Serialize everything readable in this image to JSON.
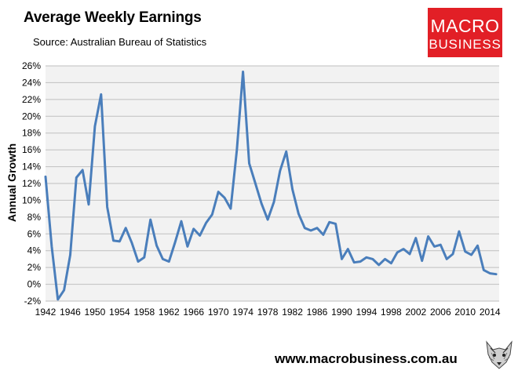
{
  "header": {
    "title": "Average Weekly Earnings",
    "subtitle": "Source: Australian Bureau of Statistics"
  },
  "logo": {
    "line1": "MACRO",
    "line2": "BUSINESS",
    "color": "#e21f26"
  },
  "footer": {
    "website": "www.macrobusiness.com.au"
  },
  "chart_data": {
    "type": "line",
    "title": "Average Weekly Earnings",
    "xlabel": "",
    "ylabel": "Annual Growth",
    "ylim": [
      -2,
      26
    ],
    "xlim": [
      1942,
      2015.5
    ],
    "grid": true,
    "line_color": "#4a7ebb",
    "plot_background": "#f2f2f2",
    "y_ticks": [
      -2,
      0,
      2,
      4,
      6,
      8,
      10,
      12,
      14,
      16,
      18,
      20,
      22,
      24,
      26
    ],
    "y_tick_labels": [
      "-2%",
      "0%",
      "2%",
      "4%",
      "6%",
      "8%",
      "10%",
      "12%",
      "14%",
      "16%",
      "18%",
      "20%",
      "22%",
      "24%",
      "26%"
    ],
    "x_ticks": [
      1942,
      1946,
      1950,
      1954,
      1958,
      1962,
      1966,
      1970,
      1974,
      1978,
      1982,
      1986,
      1990,
      1994,
      1998,
      2002,
      2006,
      2010,
      2014
    ],
    "series": [
      {
        "x": [
          1942,
          1943,
          1944,
          1945,
          1946,
          1947,
          1948,
          1949,
          1950,
          1951,
          1952,
          1953,
          1954,
          1955,
          1956,
          1957,
          1958,
          1959,
          1960,
          1961,
          1962,
          1963,
          1964,
          1965,
          1966,
          1967,
          1968,
          1969,
          1970,
          1971,
          1972,
          1973,
          1974,
          1975,
          1976,
          1977,
          1978,
          1979,
          1980,
          1981,
          1982,
          1983,
          1984,
          1985,
          1986,
          1987,
          1988,
          1989,
          1990,
          1991,
          1992,
          1993,
          1994,
          1995,
          1996,
          1997,
          1998,
          1999,
          2000,
          2001,
          2002,
          2003,
          2004,
          2005,
          2006,
          2007,
          2008,
          2009,
          2010,
          2011,
          2012,
          2013,
          2014,
          2015
        ],
        "values": [
          12.8,
          4.5,
          -1.8,
          -0.7,
          3.5,
          12.7,
          13.6,
          9.5,
          18.8,
          22.6,
          9.2,
          5.2,
          5.1,
          6.7,
          4.9,
          2.7,
          3.2,
          7.7,
          4.6,
          3.0,
          2.7,
          5.0,
          7.5,
          4.5,
          6.6,
          5.8,
          7.3,
          8.3,
          11.0,
          10.3,
          9.0,
          16.0,
          25.3,
          14.4,
          12.0,
          9.6,
          7.7,
          9.8,
          13.5,
          15.8,
          11.3,
          8.4,
          6.7,
          6.4,
          6.7,
          5.9,
          7.4,
          7.2,
          3.0,
          4.2,
          2.6,
          2.7,
          3.2,
          3.0,
          2.3,
          3.0,
          2.5,
          3.8,
          4.2,
          3.6,
          5.5,
          2.8,
          5.7,
          4.5,
          4.7,
          3.0,
          3.6,
          6.3,
          3.9,
          3.5,
          4.6,
          1.7,
          1.3,
          1.2
        ]
      }
    ]
  }
}
